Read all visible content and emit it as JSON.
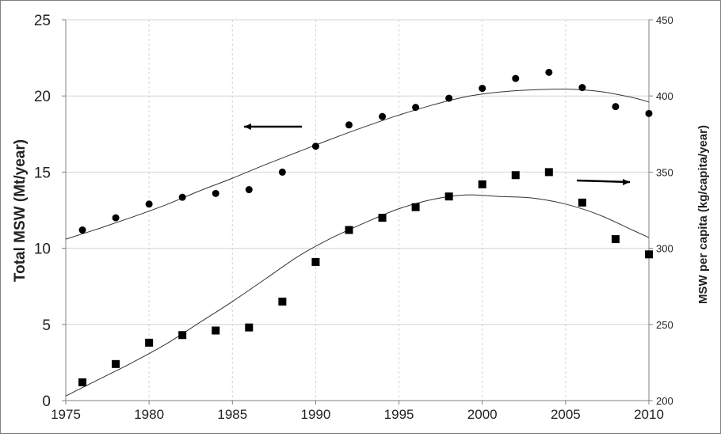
{
  "chart_data": {
    "type": "scatter",
    "title": "",
    "xlabel": "",
    "ylabel": "Total MSW (Mt/year)",
    "y2label": "MSW per capita (kg/capita/year)",
    "xlim": [
      1975,
      2010
    ],
    "ylim": [
      0,
      25
    ],
    "y2lim": [
      200,
      450
    ],
    "x_ticks": [
      "1975",
      "1980",
      "1985",
      "1990",
      "1995",
      "2000",
      "2005",
      "2010"
    ],
    "y_ticks": [
      "0",
      "5",
      "10",
      "15",
      "20",
      "25"
    ],
    "y2_ticks": [
      "200",
      "250",
      "300",
      "350",
      "400",
      "450"
    ],
    "grid": true,
    "series": [
      {
        "axis": "left",
        "marker": "circle",
        "x": [
          1976,
          1978,
          1980,
          1982,
          1984,
          1986,
          1988,
          1990,
          1992,
          1994,
          1996,
          1998,
          2000,
          2002,
          2004,
          2006,
          2008,
          2010
        ],
        "y": [
          11.2,
          12.0,
          12.9,
          13.35,
          13.6,
          13.85,
          15.0,
          16.7,
          18.1,
          18.65,
          19.25,
          19.85,
          20.5,
          21.15,
          21.55,
          20.55,
          19.3,
          18.85
        ]
      },
      {
        "axis": "right",
        "marker": "square",
        "x": [
          1976,
          1978,
          1980,
          1982,
          1984,
          1986,
          1988,
          1990,
          1992,
          1994,
          1996,
          1998,
          2000,
          2002,
          2004,
          2006,
          2008,
          2010
        ],
        "y": [
          212,
          224,
          238,
          243,
          246,
          248,
          265,
          291,
          312,
          320,
          327,
          334,
          342,
          348,
          350,
          330,
          306,
          296
        ]
      }
    ],
    "trendlines": [
      {
        "axis": "left",
        "x": [
          1975,
          1977,
          1979,
          1981,
          1983,
          1985,
          1987,
          1989,
          1991,
          1993,
          1995,
          1997,
          1999,
          2001,
          2003,
          2005,
          2007,
          2009,
          2010
        ],
        "y": [
          10.6,
          11.3,
          12.05,
          12.85,
          13.75,
          14.6,
          15.5,
          16.35,
          17.2,
          18.0,
          18.75,
          19.4,
          19.95,
          20.25,
          20.4,
          20.45,
          20.3,
          19.9,
          19.6
        ]
      },
      {
        "axis": "right",
        "x": [
          1975,
          1977,
          1979,
          1981,
          1983,
          1985,
          1987,
          1989,
          1991,
          1993,
          1995,
          1997,
          1999,
          2001,
          2003,
          2005,
          2007,
          2009,
          2010
        ],
        "y": [
          203,
          214,
          225,
          237,
          251,
          265,
          280,
          295,
          307,
          317,
          326,
          332,
          335,
          334,
          333,
          329,
          322,
          312,
          307
        ]
      }
    ],
    "annotations": [
      {
        "type": "arrow",
        "direction": "left",
        "refers_to": "left axis"
      },
      {
        "type": "arrow",
        "direction": "right",
        "refers_to": "right axis"
      }
    ]
  }
}
